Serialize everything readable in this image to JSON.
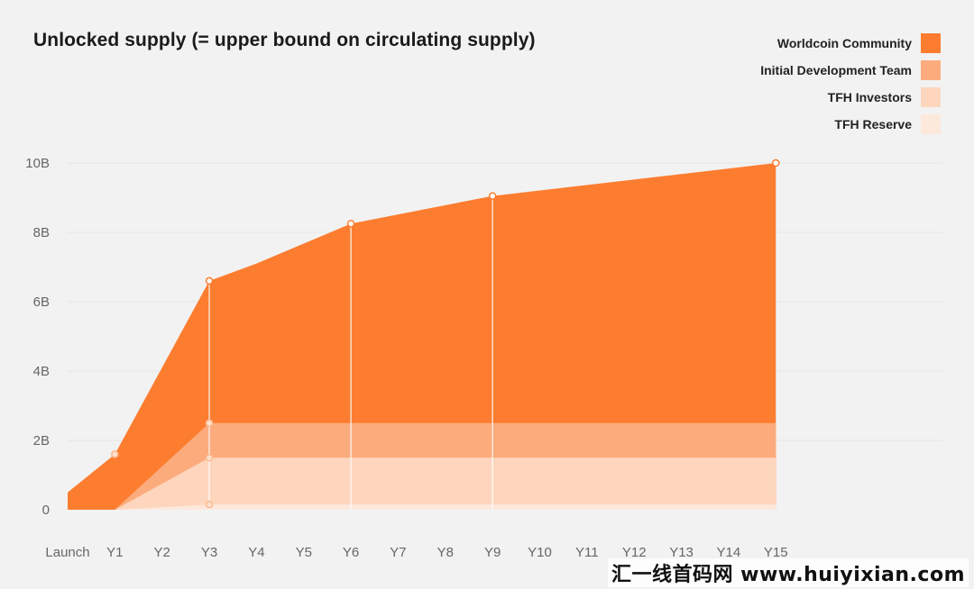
{
  "chart_data": {
    "type": "area",
    "title": "Unlocked supply (= upper bound on circulating supply)",
    "xlabel": "",
    "ylabel": "",
    "x": [
      "Launch",
      "Y1",
      "Y2",
      "Y3",
      "Y4",
      "Y5",
      "Y6",
      "Y7",
      "Y8",
      "Y9",
      "Y10",
      "Y11",
      "Y12",
      "Y13",
      "Y14",
      "Y15"
    ],
    "yticks": [
      "0",
      "2B",
      "4B",
      "6B",
      "8B",
      "10B"
    ],
    "ylim": [
      0,
      10
    ],
    "stacked": true,
    "legend_position": "top-right",
    "grid": "horizontal",
    "series": [
      {
        "name": "TFH Reserve",
        "color": "#fde8dc",
        "points": [
          [
            0,
            0
          ],
          [
            1,
            0
          ],
          [
            3,
            0.15
          ],
          [
            15,
            0.15
          ]
        ]
      },
      {
        "name": "TFH Investors",
        "color": "#fdd6bd",
        "points": [
          [
            0,
            0
          ],
          [
            1,
            0
          ],
          [
            3,
            1.5
          ],
          [
            15,
            1.5
          ]
        ]
      },
      {
        "name": "Initial Development Team",
        "color": "#fcab7c",
        "points": [
          [
            0,
            0
          ],
          [
            1,
            0
          ],
          [
            3,
            2.5
          ],
          [
            15,
            2.5
          ]
        ]
      },
      {
        "name": "Worldcoin Community",
        "color": "#fc7d30",
        "points": [
          [
            0,
            0.5
          ],
          [
            1,
            1.6
          ],
          [
            3,
            6.6
          ],
          [
            4,
            7.1
          ],
          [
            6,
            8.25
          ],
          [
            9,
            9.05
          ],
          [
            15,
            10
          ]
        ]
      }
    ],
    "markers": [
      {
        "x": 1,
        "y": 1.6
      },
      {
        "x": 3,
        "y": 6.6
      },
      {
        "x": 3,
        "y": 2.5
      },
      {
        "x": 3,
        "y": 1.5
      },
      {
        "x": 3,
        "y": 0.15
      },
      {
        "x": 6,
        "y": 8.25
      },
      {
        "x": 9,
        "y": 9.05
      },
      {
        "x": 15,
        "y": 10
      }
    ],
    "vertical_lines_at": [
      3,
      6,
      9
    ]
  },
  "legend": {
    "items": [
      {
        "label": "Worldcoin Community",
        "color": "#fc7d30"
      },
      {
        "label": "Initial Development Team",
        "color": "#fcab7c"
      },
      {
        "label": "TFH Investors",
        "color": "#fdd6bd"
      },
      {
        "label": "TFH Reserve",
        "color": "#fde8dc"
      }
    ]
  },
  "watermark": "汇一线首码网 www.huiyixian.com"
}
